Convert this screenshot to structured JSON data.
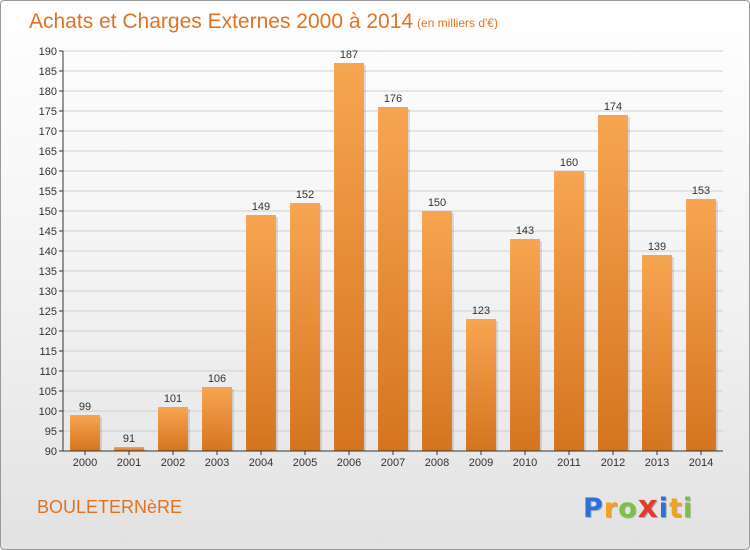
{
  "chart_data": {
    "type": "bar",
    "title": "Achats et Charges Externes 2000 à 2014",
    "subtitle": "(en milliers d'€)",
    "categories": [
      "2000",
      "2001",
      "2002",
      "2003",
      "2004",
      "2005",
      "2006",
      "2007",
      "2008",
      "2009",
      "2010",
      "2011",
      "2012",
      "2013",
      "2014"
    ],
    "values": [
      99,
      91,
      101,
      106,
      149,
      152,
      187,
      176,
      150,
      123,
      143,
      160,
      174,
      139,
      153
    ],
    "ylim": [
      90,
      190
    ],
    "ytick_step": 5,
    "grid": true,
    "bar_color": "#f28a2c",
    "bar_color_light": "#f7a552",
    "bar_color_dark": "#d5741f"
  },
  "footer": {
    "commune": "BOULETERNèRE",
    "logo_letters": [
      "P",
      "r",
      "o",
      "x",
      "i",
      "t",
      "i"
    ],
    "logo_colors": [
      "#2e6fd8",
      "#f2a21c",
      "#7cc242",
      "#e53a2e",
      "#2e6fd8",
      "#f2a21c",
      "#7cc242"
    ]
  }
}
